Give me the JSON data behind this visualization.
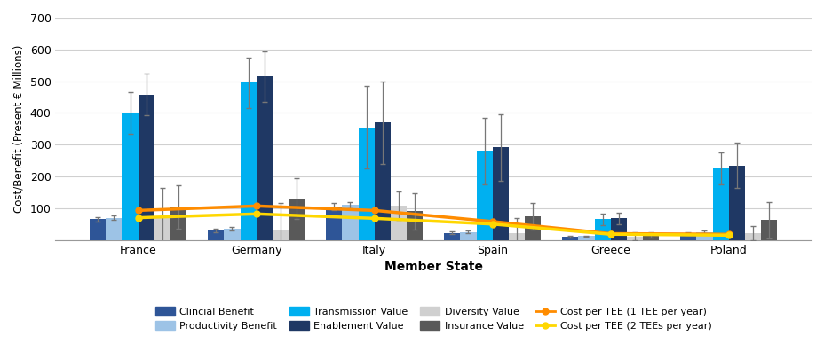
{
  "categories": [
    "France",
    "Germany",
    "Italy",
    "Spain",
    "Greece",
    "Poland"
  ],
  "bar_series": {
    "Clinical Benefit": [
      65,
      30,
      105,
      22,
      10,
      20
    ],
    "Productivity Benefit": [
      70,
      35,
      110,
      25,
      12,
      25
    ],
    "Transmission Value": [
      400,
      495,
      355,
      280,
      65,
      225
    ],
    "Enablement Value": [
      458,
      515,
      370,
      292,
      68,
      235
    ],
    "Diversity Value": [
      68,
      32,
      108,
      22,
      11,
      22
    ],
    "Insurance Value": [
      103,
      130,
      90,
      75,
      15,
      62
    ]
  },
  "bar_errors": {
    "Clinical Benefit": [
      8,
      6,
      10,
      4,
      2,
      4
    ],
    "Productivity Benefit": [
      8,
      6,
      10,
      4,
      2,
      4
    ],
    "Transmission Value": [
      65,
      80,
      130,
      105,
      18,
      50
    ],
    "Enablement Value": [
      65,
      80,
      130,
      105,
      18,
      70
    ],
    "Diversity Value": [
      95,
      85,
      45,
      48,
      13,
      22
    ],
    "Insurance Value": [
      68,
      65,
      58,
      42,
      8,
      58
    ]
  },
  "bar_colors": {
    "Clinical Benefit": "#2E5597",
    "Productivity Benefit": "#9DC3E6",
    "Transmission Value": "#00B0F0",
    "Enablement Value": "#1F3864",
    "Diversity Value": "#D0D0D0",
    "Insurance Value": "#595959"
  },
  "line_series": {
    "Cost per TEE (1 TEE per year)": [
      93,
      107,
      93,
      58,
      20,
      18
    ],
    "Cost per TEE (2 TEEs per year)": [
      70,
      82,
      68,
      50,
      18,
      15
    ]
  },
  "line_colors": {
    "Cost per TEE (1 TEE per year)": "#FF8C00",
    "Cost per TEE (2 TEEs per year)": "#FFD700"
  },
  "ylabel": "Cost/Benefit (Present € Millions)",
  "xlabel": "Member State",
  "ylim": [
    0,
    700
  ],
  "yticks": [
    0,
    100,
    200,
    300,
    400,
    500,
    600,
    700
  ],
  "background_color": "#FFFFFF",
  "grid_color": "#D0D0D0",
  "legend_row1": [
    "Clincial Benefit",
    "Productivity Benefit",
    "Transmission Value",
    "Enablement Value"
  ],
  "legend_row2": [
    "Diversity Value",
    "Insurance Value",
    "Cost per TEE (1 TEE per year)",
    "Cost per TEE (2 TEEs per year)"
  ]
}
